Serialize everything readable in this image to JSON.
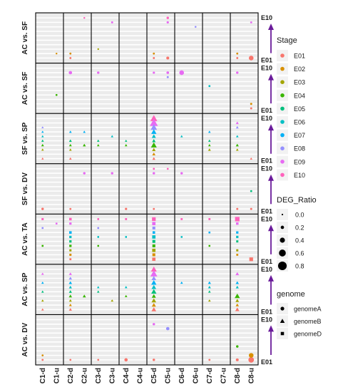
{
  "chart_data": {
    "type": "scatter",
    "title": "",
    "x_label": "",
    "y_label": "",
    "comparisons": [
      "AC vs. SF",
      "AC vs. SF",
      "SF vs. SP",
      "SF vs. DV",
      "AC vs. TA",
      "AC vs. SP",
      "AC vs. DV"
    ],
    "columns": [
      "C1-d",
      "C1-u",
      "C2-d",
      "C2-u",
      "C3-d",
      "C3-u",
      "C4-d",
      "C4-u",
      "C5-d",
      "C5-u",
      "C6-d",
      "C6-u",
      "C7-d",
      "C7-u",
      "C8-d",
      "C8-u"
    ],
    "cluster_groups": [
      [
        "C1-d",
        "C1-u"
      ],
      [
        "C2-d",
        "C2-u"
      ],
      [
        "C3-d",
        "C3-u"
      ],
      [
        "C4-d",
        "C4-u"
      ],
      [
        "C5-d",
        "C5-u"
      ],
      [
        "C6-d",
        "C6-u"
      ],
      [
        "C7-d",
        "C7-u"
      ],
      [
        "C8-d",
        "C8-u"
      ]
    ],
    "stage_axis": {
      "bottom": "E01",
      "top": "E10"
    },
    "legends": {
      "stage": {
        "title": "Stage",
        "items": [
          {
            "label": "E01",
            "color": "#F8766D"
          },
          {
            "label": "E02",
            "color": "#D89000"
          },
          {
            "label": "E03",
            "color": "#A3A500"
          },
          {
            "label": "E04",
            "color": "#39B600"
          },
          {
            "label": "E05",
            "color": "#00BF7D"
          },
          {
            "label": "E06",
            "color": "#00BFC4"
          },
          {
            "label": "E07",
            "color": "#00B0F6"
          },
          {
            "label": "E08",
            "color": "#9590FF"
          },
          {
            "label": "E09",
            "color": "#E76BF3"
          },
          {
            "label": "E10",
            "color": "#FF62BC"
          }
        ]
      },
      "deg_ratio": {
        "title": "DEG_Ratio",
        "values": [
          0.0,
          0.2,
          0.4,
          0.6,
          0.8
        ]
      },
      "genome": {
        "title": "genome",
        "items": [
          {
            "label": "genomeA",
            "shape": "circle"
          },
          {
            "label": "genomeB",
            "shape": "triangle"
          },
          {
            "label": "genomeD",
            "shape": "square"
          }
        ]
      }
    },
    "arrow_color": "#6a1b9a",
    "panels": [
      {
        "comparison": "AC vs. SF",
        "genome": "genomeA",
        "points": [
          [
            1,
            1,
            0.02
          ],
          [
            2,
            0,
            0.05
          ],
          [
            2,
            1,
            0.05
          ],
          [
            3,
            9,
            0.02
          ],
          [
            4,
            2,
            0.02
          ],
          [
            5,
            8,
            0.06
          ],
          [
            8,
            0,
            0.05
          ],
          [
            8,
            1,
            0.05
          ],
          [
            9,
            0,
            0.15
          ],
          [
            9,
            9,
            0.1
          ],
          [
            9,
            8,
            0.08
          ],
          [
            11,
            7,
            0.03
          ],
          [
            14,
            0,
            0.05
          ],
          [
            14,
            1,
            0.05
          ],
          [
            15,
            0,
            0.35
          ],
          [
            15,
            8,
            0.05
          ]
        ]
      },
      {
        "comparison": "AC vs. SF",
        "genome": "genomeA",
        "points": [
          [
            1,
            3,
            0.04
          ],
          [
            2,
            8,
            0.2
          ],
          [
            4,
            8,
            0.1
          ],
          [
            8,
            8,
            0.08
          ],
          [
            9,
            8,
            0.12
          ],
          [
            9,
            7,
            0.06
          ],
          [
            10,
            8,
            0.35
          ],
          [
            12,
            5,
            0.05
          ],
          [
            14,
            8,
            0.1
          ],
          [
            15,
            0,
            0.06
          ],
          [
            15,
            1,
            0.06
          ]
        ]
      },
      {
        "comparison": "SF vs. SP",
        "genome": "genomeB",
        "points": [
          [
            0,
            7,
            0.04
          ],
          [
            0,
            6,
            0.04
          ],
          [
            0,
            5,
            0.04
          ],
          [
            0,
            4,
            0.06
          ],
          [
            0,
            3,
            0.08
          ],
          [
            0,
            2,
            0.05
          ],
          [
            0,
            0,
            0.04
          ],
          [
            2,
            6,
            0.06
          ],
          [
            2,
            4,
            0.08
          ],
          [
            2,
            3,
            0.08
          ],
          [
            2,
            2,
            0.06
          ],
          [
            2,
            0,
            0.06
          ],
          [
            3,
            6,
            0.05
          ],
          [
            3,
            3,
            0.1
          ],
          [
            4,
            4,
            0.06
          ],
          [
            4,
            3,
            0.06
          ],
          [
            5,
            5,
            0.05
          ],
          [
            6,
            4,
            0.04
          ],
          [
            6,
            3,
            0.06
          ],
          [
            8,
            9,
            0.45
          ],
          [
            8,
            8,
            0.55
          ],
          [
            8,
            7,
            0.4
          ],
          [
            8,
            6,
            0.3
          ],
          [
            8,
            5,
            0.2
          ],
          [
            8,
            4,
            0.15
          ],
          [
            8,
            3,
            0.35
          ],
          [
            8,
            2,
            0.15
          ],
          [
            8,
            1,
            0.12
          ],
          [
            8,
            0,
            0.1
          ],
          [
            10,
            5,
            0.05
          ],
          [
            12,
            6,
            0.05
          ],
          [
            12,
            4,
            0.06
          ],
          [
            12,
            3,
            0.06
          ],
          [
            12,
            2,
            0.08
          ],
          [
            14,
            8,
            0.1
          ],
          [
            14,
            7,
            0.08
          ],
          [
            14,
            5,
            0.06
          ],
          [
            14,
            3,
            0.1
          ],
          [
            14,
            2,
            0.06
          ],
          [
            15,
            0,
            0.05
          ]
        ]
      },
      {
        "comparison": "SF vs. DV",
        "genome": "genomeA",
        "points": [
          [
            0,
            0,
            0.1
          ],
          [
            2,
            0,
            0.05
          ],
          [
            3,
            8,
            0.1
          ],
          [
            5,
            8,
            0.1
          ],
          [
            6,
            0,
            0.08
          ],
          [
            8,
            8,
            0.1
          ],
          [
            8,
            9,
            0.05
          ],
          [
            8,
            0,
            0.05
          ],
          [
            9,
            9,
            0.04
          ],
          [
            10,
            8,
            0.1
          ],
          [
            14,
            0,
            0.06
          ],
          [
            15,
            0,
            0.06
          ],
          [
            15,
            4,
            0.05
          ]
        ]
      },
      {
        "comparison": "AC vs. TA",
        "genome": "genomeD",
        "points": [
          [
            0,
            9,
            0.1
          ],
          [
            0,
            7,
            0.06
          ],
          [
            0,
            3,
            0.06
          ],
          [
            1,
            8,
            0.06
          ],
          [
            2,
            9,
            0.15
          ],
          [
            2,
            8,
            0.12
          ],
          [
            2,
            6,
            0.15
          ],
          [
            2,
            5,
            0.12
          ],
          [
            2,
            4,
            0.12
          ],
          [
            2,
            3,
            0.12
          ],
          [
            2,
            2,
            0.1
          ],
          [
            2,
            1,
            0.1
          ],
          [
            2,
            0,
            0.08
          ],
          [
            4,
            9,
            0.06
          ],
          [
            4,
            7,
            0.06
          ],
          [
            4,
            5,
            0.05
          ],
          [
            4,
            3,
            0.05
          ],
          [
            6,
            9,
            0.08
          ],
          [
            6,
            5,
            0.05
          ],
          [
            8,
            9,
            0.3
          ],
          [
            8,
            8,
            0.25
          ],
          [
            8,
            7,
            0.2
          ],
          [
            8,
            6,
            0.15
          ],
          [
            8,
            5,
            0.25
          ],
          [
            8,
            4,
            0.2
          ],
          [
            8,
            3,
            0.2
          ],
          [
            8,
            2,
            0.25
          ],
          [
            8,
            1,
            0.2
          ],
          [
            8,
            0,
            0.25
          ],
          [
            10,
            9,
            0.08
          ],
          [
            10,
            5,
            0.05
          ],
          [
            12,
            9,
            0.08
          ],
          [
            12,
            6,
            0.06
          ],
          [
            12,
            3,
            0.05
          ],
          [
            14,
            9,
            0.4
          ],
          [
            14,
            8,
            0.15
          ],
          [
            14,
            6,
            0.12
          ],
          [
            14,
            5,
            0.12
          ],
          [
            14,
            4,
            0.1
          ],
          [
            14,
            2,
            0.1
          ],
          [
            14,
            1,
            0.08
          ],
          [
            15,
            0,
            0.3
          ]
        ]
      },
      {
        "comparison": "AC vs. SP",
        "genome": "genomeB",
        "points": [
          [
            0,
            8,
            0.06
          ],
          [
            0,
            6,
            0.05
          ],
          [
            0,
            4,
            0.05
          ],
          [
            0,
            2,
            0.05
          ],
          [
            0,
            0,
            0.06
          ],
          [
            2,
            8,
            0.1
          ],
          [
            2,
            7,
            0.12
          ],
          [
            2,
            6,
            0.12
          ],
          [
            2,
            5,
            0.1
          ],
          [
            2,
            4,
            0.1
          ],
          [
            2,
            3,
            0.12
          ],
          [
            2,
            2,
            0.08
          ],
          [
            2,
            1,
            0.08
          ],
          [
            2,
            0,
            0.1
          ],
          [
            3,
            3,
            0.12
          ],
          [
            4,
            5,
            0.05
          ],
          [
            4,
            4,
            0.05
          ],
          [
            5,
            2,
            0.06
          ],
          [
            6,
            5,
            0.06
          ],
          [
            6,
            3,
            0.06
          ],
          [
            8,
            9,
            0.35
          ],
          [
            8,
            8,
            0.45
          ],
          [
            8,
            7,
            0.25
          ],
          [
            8,
            6,
            0.3
          ],
          [
            8,
            5,
            0.25
          ],
          [
            8,
            4,
            0.3
          ],
          [
            8,
            3,
            0.2
          ],
          [
            8,
            2,
            0.25
          ],
          [
            8,
            1,
            0.2
          ],
          [
            8,
            0,
            0.25
          ],
          [
            10,
            6,
            0.06
          ],
          [
            12,
            6,
            0.1
          ],
          [
            12,
            5,
            0.08
          ],
          [
            12,
            4,
            0.06
          ],
          [
            12,
            2,
            0.06
          ],
          [
            14,
            8,
            0.15
          ],
          [
            14,
            6,
            0.12
          ],
          [
            14,
            5,
            0.1
          ],
          [
            14,
            3,
            0.3
          ],
          [
            14,
            2,
            0.15
          ],
          [
            14,
            1,
            0.12
          ],
          [
            14,
            0,
            0.2
          ]
        ]
      },
      {
        "comparison": "AC vs. DV",
        "genome": "genomeA",
        "points": [
          [
            0,
            1,
            0.04
          ],
          [
            0,
            0,
            0.05
          ],
          [
            2,
            0,
            0.04
          ],
          [
            4,
            0,
            0.04
          ],
          [
            6,
            0,
            0.2
          ],
          [
            8,
            0,
            0.1
          ],
          [
            8,
            8,
            0.1
          ],
          [
            9,
            7,
            0.2
          ],
          [
            12,
            0,
            0.05
          ],
          [
            14,
            3,
            0.1
          ],
          [
            14,
            0,
            0.15
          ],
          [
            15,
            0,
            0.45
          ],
          [
            15,
            1,
            0.35
          ]
        ]
      }
    ]
  }
}
